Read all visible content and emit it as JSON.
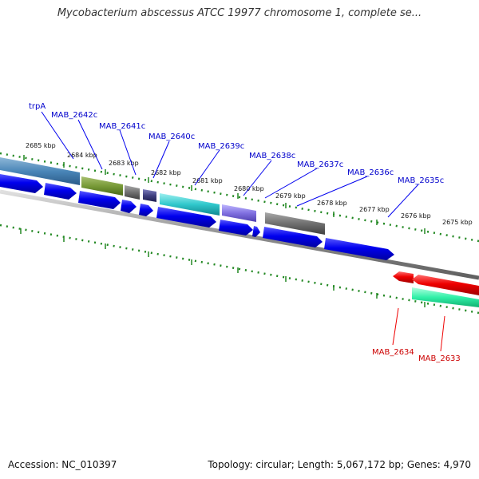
{
  "title": "Mycobacterium abscessus ATCC 19977 chromosome 1, complete se...",
  "footer": {
    "accession": "Accession: NC_010397",
    "summary": "Topology: circular; Length: 5,067,172 bp; Genes: 4,970"
  },
  "colors": {
    "minus_strand_gene": "#0000ee",
    "plus_strand_gene": "#ee0000",
    "minus_label": "#0000cc",
    "plus_label": "#cc0000",
    "tick": "#228822",
    "backbone": "#888888"
  },
  "kbp_ticks": [
    "2685 kbp",
    "2684 kbp",
    "2683 kbp",
    "2682 kbp",
    "2681 kbp",
    "2680 kbp",
    "2679 kbp",
    "2678 kbp",
    "2677 kbp",
    "2676 kbp",
    "2675 kbp"
  ],
  "minus_gene_labels": [
    "trpA",
    "MAB_2642c",
    "MAB_2641c",
    "MAB_2640c",
    "MAB_2639c",
    "MAB_2638c",
    "MAB_2637c",
    "MAB_2636c",
    "MAB_2635c"
  ],
  "plus_gene_labels": [
    "MAB_2634",
    "MAB_2633"
  ]
}
